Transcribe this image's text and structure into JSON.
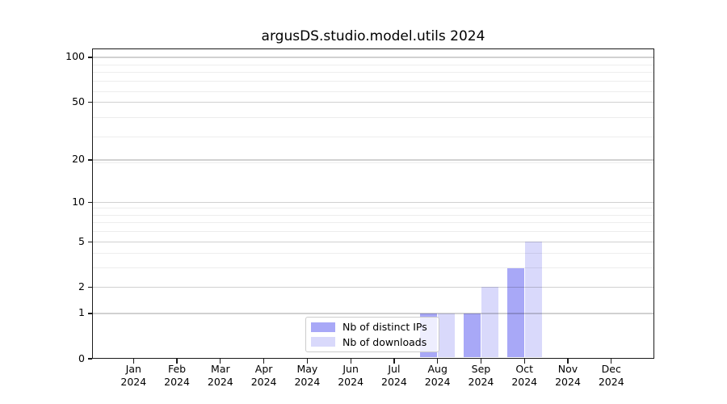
{
  "chart_data": {
    "type": "bar",
    "title": "argusDS.studio.model.utils 2024",
    "year_label": "2024",
    "categories": [
      "Jan",
      "Feb",
      "Mar",
      "Apr",
      "May",
      "Jun",
      "Jul",
      "Aug",
      "Sep",
      "Oct",
      "Nov",
      "Dec"
    ],
    "series": [
      {
        "name": "Nb of distinct IPs",
        "color": "#a8a8f7",
        "values": [
          0,
          0,
          0,
          0,
          0,
          0,
          0,
          1,
          1,
          3,
          0,
          0
        ]
      },
      {
        "name": "Nb of downloads",
        "color": "#d9d9fb",
        "values": [
          0,
          0,
          0,
          0,
          0,
          0,
          0,
          1,
          2,
          5,
          0,
          0
        ]
      }
    ],
    "y_scale": "log1p",
    "y_ticks": [
      0,
      1,
      2,
      5,
      10,
      20,
      50,
      100
    ],
    "y_tick_labels": [
      "0",
      "1",
      "2",
      "5",
      "10",
      "20",
      "50",
      "100"
    ],
    "ylim": [
      0,
      115
    ],
    "grid": true,
    "legend_position": "lower center"
  },
  "colors": {
    "background": "#ffffff",
    "axis": "#1a1a1a",
    "text": "#000000",
    "grid_major": "rgba(0,0,0,0.18)",
    "grid_minor": "rgba(0,0,0,0.07)",
    "legend_border": "#cccccc",
    "legend_background": "rgba(255,255,255,0.8)"
  }
}
